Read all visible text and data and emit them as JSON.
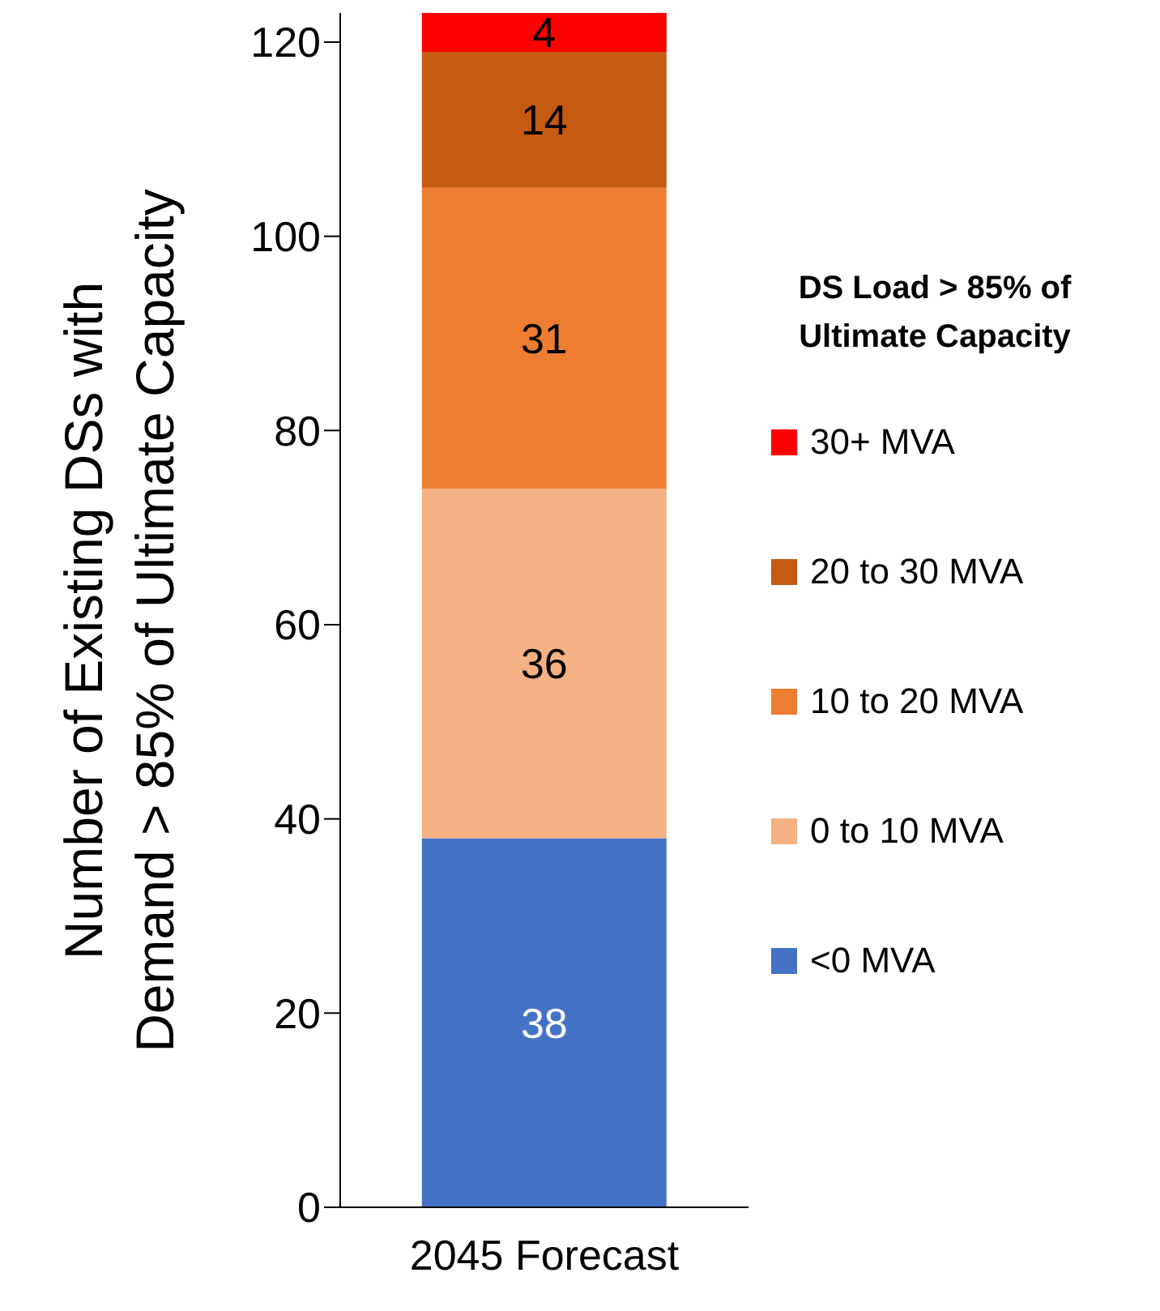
{
  "chart_data": {
    "type": "bar",
    "stacked": true,
    "ylabel": "Number of Existing DSs with Demand > 85% of Ultimate Capacity",
    "legend_title": "DS Load > 85% of Ultimate Capacity",
    "categories": [
      "2045 Forecast"
    ],
    "series": [
      {
        "name": "<0 MVA",
        "color": "#4472c4",
        "values": [
          38
        ]
      },
      {
        "name": "0 to 10 MVA",
        "color": "#f4b183",
        "values": [
          36
        ]
      },
      {
        "name": "10 to 20 MVA",
        "color": "#ed7d31",
        "values": [
          31
        ]
      },
      {
        "name": "20 to 30 MVA",
        "color": "#c55a11",
        "values": [
          14
        ]
      },
      {
        "name": "30+ MVA",
        "color": "#ff0000",
        "values": [
          4
        ]
      }
    ],
    "ylim": [
      0,
      123
    ],
    "yticks": [
      0,
      20,
      40,
      60,
      80,
      100,
      120
    ],
    "grid": false,
    "legend": "right",
    "data_labels": true
  }
}
